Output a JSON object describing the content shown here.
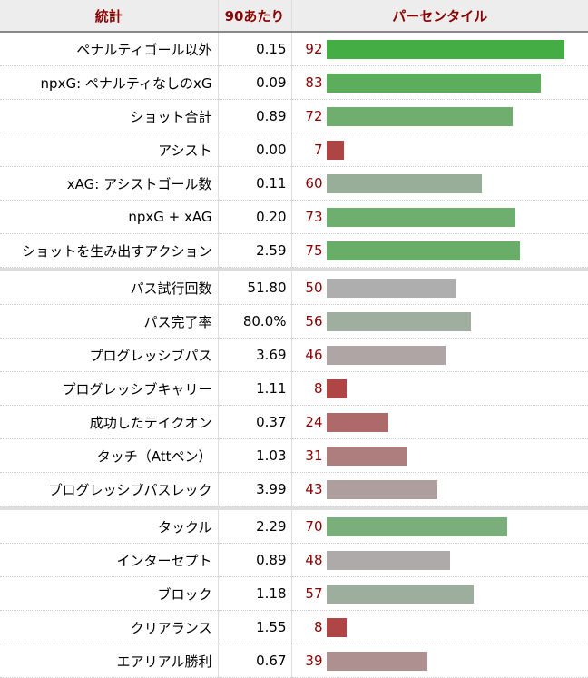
{
  "header": {
    "stat": "統計",
    "per90": "90あたり",
    "percentile": "パーセンタイル"
  },
  "groups": [
    [
      {
        "stat": "ペナルティゴール以外",
        "per90": "0.15",
        "percentile": 92,
        "color": "#44ae44"
      },
      {
        "stat": "npxG: ペナルティなしのxG",
        "per90": "0.09",
        "percentile": 83,
        "color": "#5cae5c"
      },
      {
        "stat": "ショット合計",
        "per90": "0.89",
        "percentile": 72,
        "color": "#70ae70"
      },
      {
        "stat": "アシスト",
        "per90": "0.00",
        "percentile": 7,
        "color": "#ae4444"
      },
      {
        "stat": "xAG: アシストゴール数",
        "per90": "0.11",
        "percentile": 60,
        "color": "#98ae98"
      },
      {
        "stat": "npxG + xAG",
        "per90": "0.20",
        "percentile": 73,
        "color": "#6eae6e"
      },
      {
        "stat": "ショットを生み出すアクション",
        "per90": "2.59",
        "percentile": 75,
        "color": "#68ae68"
      }
    ],
    [
      {
        "stat": "パス試行回数",
        "per90": "51.80",
        "percentile": 50,
        "color": "#aeaeae"
      },
      {
        "stat": "パス完了率",
        "per90": "80.0%",
        "percentile": 56,
        "color": "#a0ae9f"
      },
      {
        "stat": "プログレッシブパス",
        "per90": "3.69",
        "percentile": 46,
        "color": "#aea5a4"
      },
      {
        "stat": "プログレッシブキャリー",
        "per90": "1.11",
        "percentile": 8,
        "color": "#ae4646"
      },
      {
        "stat": "成功したテイクオン",
        "per90": "0.37",
        "percentile": 24,
        "color": "#ae6a6a"
      },
      {
        "stat": "タッチ（Attペン）",
        "per90": "1.03",
        "percentile": 31,
        "color": "#ae7e7e"
      },
      {
        "stat": "プログレッシブパスレック",
        "per90": "3.99",
        "percentile": 43,
        "color": "#ae9e9e"
      }
    ],
    [
      {
        "stat": "タックル",
        "per90": "2.29",
        "percentile": 70,
        "color": "#7aae7a"
      },
      {
        "stat": "インターセプト",
        "per90": "0.89",
        "percentile": 48,
        "color": "#aeaaaa"
      },
      {
        "stat": "ブロック",
        "per90": "1.18",
        "percentile": 57,
        "color": "#9eae9e"
      },
      {
        "stat": "クリアランス",
        "per90": "1.55",
        "percentile": 8,
        "color": "#ae4646"
      },
      {
        "stat": "エアリアル勝利",
        "per90": "0.67",
        "percentile": 39,
        "color": "#ae9090"
      }
    ]
  ]
}
